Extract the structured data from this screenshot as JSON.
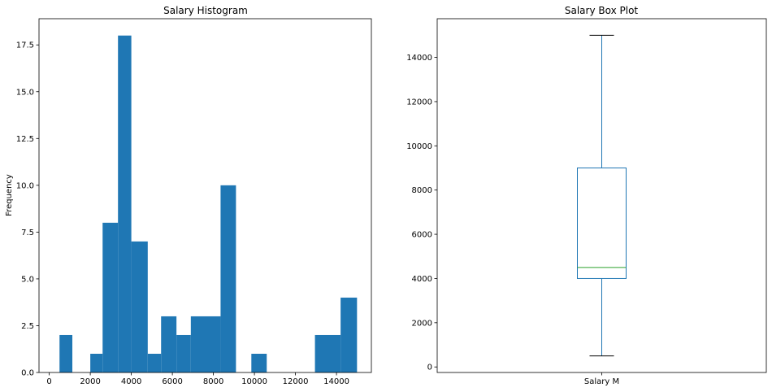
{
  "chart_data": [
    {
      "type": "bar",
      "title": "Salary Histogram",
      "xlabel": "",
      "ylabel": "Frequency",
      "bins": [
        {
          "x0": 500,
          "x1": 1125,
          "count": 2
        },
        {
          "x0": 1125,
          "x1": 2000,
          "count": 0
        },
        {
          "x0": 2000,
          "x1": 2600,
          "count": 1
        },
        {
          "x0": 2600,
          "x1": 3350,
          "count": 8
        },
        {
          "x0": 3350,
          "x1": 4000,
          "count": 18
        },
        {
          "x0": 4000,
          "x1": 4800,
          "count": 7
        },
        {
          "x0": 4800,
          "x1": 5450,
          "count": 1
        },
        {
          "x0": 5450,
          "x1": 6200,
          "count": 3
        },
        {
          "x0": 6200,
          "x1": 6900,
          "count": 2
        },
        {
          "x0": 6900,
          "x1": 8350,
          "count": 3
        },
        {
          "x0": 8350,
          "x1": 9100,
          "count": 10
        },
        {
          "x0": 9100,
          "x1": 9850,
          "count": 0
        },
        {
          "x0": 9850,
          "x1": 10600,
          "count": 1
        },
        {
          "x0": 10600,
          "x1": 12950,
          "count": 0
        },
        {
          "x0": 12950,
          "x1": 14200,
          "count": 2
        },
        {
          "x0": 14200,
          "x1": 15000,
          "count": 4
        }
      ],
      "xlim": [
        -500,
        15700
      ],
      "ylim": [
        0,
        18.9
      ],
      "xticks": [
        0,
        2000,
        4000,
        6000,
        8000,
        10000,
        12000,
        14000
      ],
      "xtick_labels": [
        "0",
        "2000",
        "4000",
        "6000",
        "8000",
        "10000",
        "12000",
        "14000"
      ],
      "yticks": [
        0,
        2.5,
        5,
        7.5,
        10,
        12.5,
        15,
        17.5
      ],
      "ytick_labels": [
        "0.0",
        "2.5",
        "5.0",
        "7.5",
        "10.0",
        "12.5",
        "15.0",
        "17.5"
      ],
      "color": "#1f77b4",
      "grid": false
    },
    {
      "type": "box",
      "title": "Salary Box Plot",
      "categories": [
        "Salary M"
      ],
      "whisker_low": 500,
      "q1": 4000,
      "median": 4500,
      "q3": 9000,
      "whisker_high": 15000,
      "ylim": [
        -250,
        15750
      ],
      "yticks": [
        0,
        2000,
        4000,
        6000,
        8000,
        10000,
        12000,
        14000
      ],
      "ytick_labels": [
        "0",
        "2000",
        "4000",
        "6000",
        "8000",
        "10000",
        "12000",
        "14000"
      ],
      "box_color": "#1f77b4",
      "median_color": "#2ca02c",
      "cap_color": "#000000",
      "grid": false
    }
  ]
}
